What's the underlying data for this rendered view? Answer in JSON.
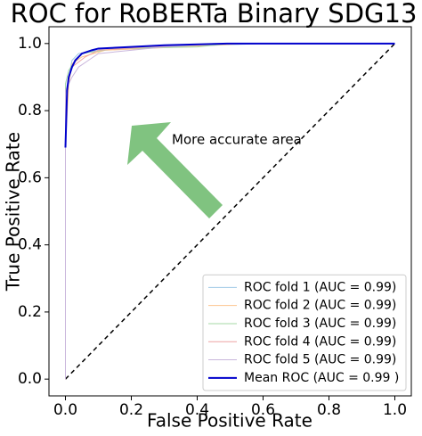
{
  "chart_data": {
    "type": "line",
    "title": "ROC for RoBERTa Binary SDG13",
    "x_label": "False Positive Rate",
    "y_label": "True Positive Rate",
    "annotation": "More accurate area",
    "xlim": [
      -0.05,
      1.05
    ],
    "ylim": [
      -0.05,
      1.05
    ],
    "xticks": [
      {
        "value": 0,
        "label": "0.0"
      },
      {
        "value": 0.2,
        "label": "0.2"
      },
      {
        "value": 0.4,
        "label": "0.4"
      },
      {
        "value": 0.6,
        "label": "0.6"
      },
      {
        "value": 0.8,
        "label": "0.8"
      },
      {
        "value": 1,
        "label": "1.0"
      }
    ],
    "yticks": [
      {
        "value": 0,
        "label": "0.0"
      },
      {
        "value": 0.2,
        "label": "0.2"
      },
      {
        "value": 0.4,
        "label": "0.4"
      },
      {
        "value": 0.6,
        "label": "0.6"
      },
      {
        "value": 0.8,
        "label": "0.8"
      },
      {
        "value": 1,
        "label": "1.0"
      }
    ],
    "grid": false,
    "legend": "lower right",
    "chance_line": {
      "x": [
        0,
        1
      ],
      "values": [
        0,
        1
      ],
      "color": "#000000",
      "dashed": true
    },
    "series": [
      {
        "name": "ROC fold 1 (AUC = 0.99)",
        "color": "#9fc9e6",
        "width": 1,
        "x": [
          0,
          0,
          0,
          0.01,
          0.02,
          0.04,
          0.1,
          0.3,
          0.6,
          1
        ],
        "values": [
          0,
          0.5,
          0.85,
          0.9,
          0.95,
          0.97,
          0.98,
          0.99,
          1,
          1
        ]
      },
      {
        "name": "ROC fold 2 (AUC = 0.99)",
        "color": "#fdc58e",
        "width": 1,
        "x": [
          0,
          0,
          0,
          0.01,
          0.02,
          0.05,
          0.12,
          0.35,
          0.55,
          1
        ],
        "values": [
          0,
          0.33,
          0.7,
          0.88,
          0.94,
          0.96,
          0.98,
          0.99,
          1,
          1
        ]
      },
      {
        "name": "ROC fold 3 (AUC = 0.99)",
        "color": "#a4d8a4",
        "width": 1,
        "x": [
          0,
          0,
          0,
          0.01,
          0.03,
          0.05,
          0.15,
          0.4,
          0.5,
          1
        ],
        "values": [
          0,
          0.6,
          0.88,
          0.92,
          0.95,
          0.97,
          0.985,
          0.99,
          1,
          1
        ]
      },
      {
        "name": "ROC fold 4 (AUC = 0.99)",
        "color": "#eea3a3",
        "width": 1,
        "x": [
          0,
          0,
          0,
          0.01,
          0.02,
          0.06,
          0.1,
          0.25,
          0.5,
          1
        ],
        "values": [
          0,
          0.45,
          0.8,
          0.89,
          0.93,
          0.96,
          0.98,
          0.99,
          1,
          1
        ]
      },
      {
        "name": "ROC fold 5 (AUC = 0.99)",
        "color": "#c9b6dc",
        "width": 1,
        "x": [
          0,
          0,
          0,
          0.02,
          0.04,
          0.07,
          0.1,
          0.3,
          0.45,
          1
        ],
        "values": [
          0,
          0.55,
          0.86,
          0.9,
          0.93,
          0.95,
          0.97,
          0.99,
          1,
          1
        ]
      },
      {
        "name": "Mean ROC (AUC = 0.99 )",
        "color": "#0000cc",
        "width": 2,
        "x": [
          0,
          0.005,
          0.01,
          0.02,
          0.03,
          0.05,
          0.08,
          0.1,
          0.2,
          0.3,
          0.5,
          1
        ],
        "values": [
          0.69,
          0.86,
          0.9,
          0.93,
          0.95,
          0.97,
          0.98,
          0.985,
          0.99,
          0.995,
          1,
          1
        ]
      }
    ]
  }
}
